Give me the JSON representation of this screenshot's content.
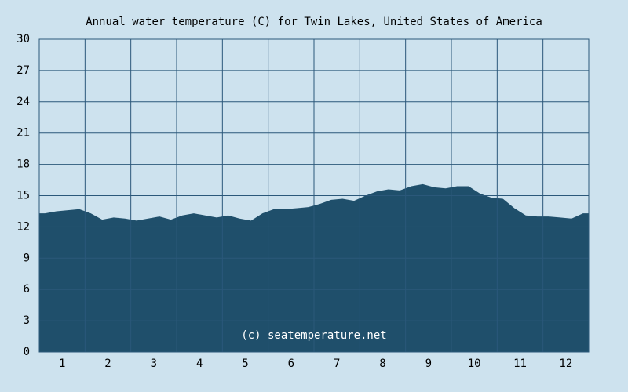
{
  "chart_data": {
    "type": "area",
    "title": "Annual water temperature (C) for Twin Lakes, United States of America",
    "annotation": "(c) seatemperature.net",
    "x": [
      0.625,
      0.875,
      1.125,
      1.375,
      1.625,
      1.875,
      2.125,
      2.375,
      2.625,
      2.875,
      3.125,
      3.375,
      3.625,
      3.875,
      4.125,
      4.375,
      4.625,
      4.875,
      5.125,
      5.375,
      5.625,
      5.875,
      6.125,
      6.375,
      6.625,
      6.875,
      7.125,
      7.375,
      7.625,
      7.875,
      8.125,
      8.375,
      8.625,
      8.875,
      9.125,
      9.375,
      9.625,
      9.875,
      10.125,
      10.375,
      10.625,
      10.875,
      11.125,
      11.375,
      11.625,
      11.875,
      12.125,
      12.375
    ],
    "series": [
      {
        "color": "#1f4f6b",
        "values": [
          13.3,
          13.5,
          13.6,
          13.7,
          13.3,
          12.7,
          12.9,
          12.8,
          12.6,
          12.8,
          13.0,
          12.7,
          13.1,
          13.3,
          13.1,
          12.9,
          13.1,
          12.8,
          12.6,
          13.3,
          13.7,
          13.7,
          13.8,
          13.9,
          14.2,
          14.6,
          14.7,
          14.5,
          15.0,
          15.4,
          15.6,
          15.5,
          15.9,
          16.1,
          15.8,
          15.7,
          15.9,
          15.9,
          15.2,
          14.8,
          14.7,
          13.8,
          13.1,
          13.0,
          13.0,
          12.9,
          12.8,
          13.3
        ]
      }
    ],
    "xlim": [
      0.5,
      12.5
    ],
    "xticks": [
      1,
      2,
      3,
      4,
      5,
      6,
      7,
      8,
      9,
      10,
      11,
      12
    ],
    "ylim": [
      0,
      30
    ],
    "yticks": [
      0,
      3,
      6,
      9,
      12,
      15,
      18,
      21,
      24,
      27,
      30
    ],
    "grid": true
  }
}
